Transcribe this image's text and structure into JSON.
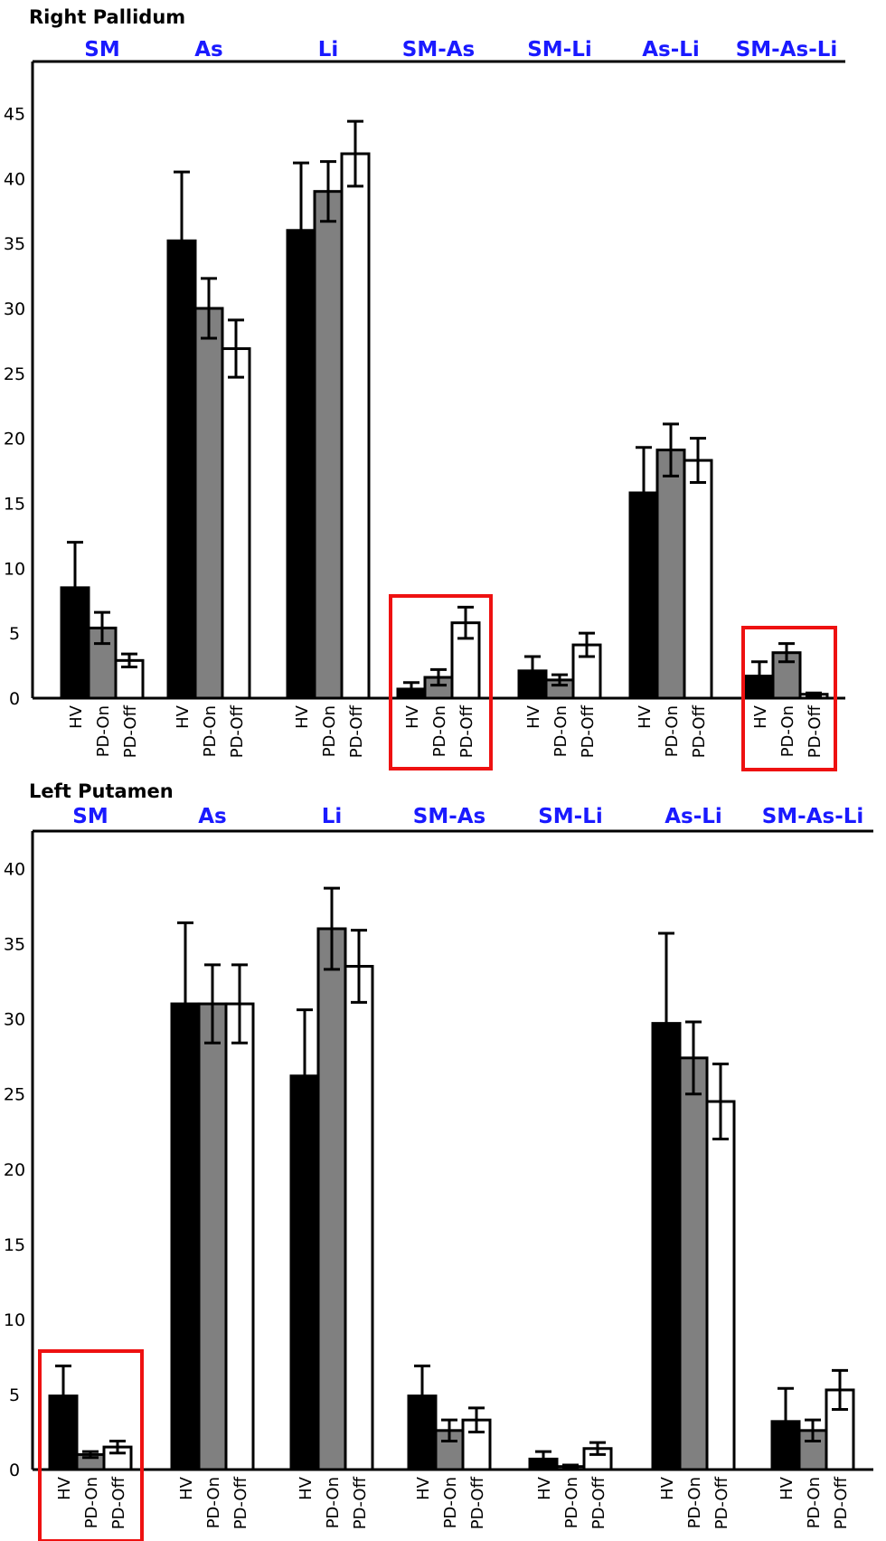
{
  "chart_data": [
    {
      "type": "bar",
      "title": "Right Pallidum",
      "categories": [
        "SM",
        "As",
        "Li",
        "SM-As",
        "SM-Li",
        "As-Li",
        "SM-As-Li"
      ],
      "groups": [
        "HV",
        "PD-On",
        "PD-Off"
      ],
      "colors": [
        "#000000",
        "#808080",
        "#ffffff"
      ],
      "ylim": [
        0,
        49
      ],
      "yticks": [
        0,
        5,
        10,
        15,
        20,
        25,
        30,
        35,
        40,
        45
      ],
      "series": [
        {
          "name": "HV",
          "values": [
            8.5,
            35.2,
            36.0,
            0.7,
            2.1,
            15.8,
            1.7
          ],
          "errors": [
            3.5,
            5.3,
            5.2,
            0.5,
            1.1,
            3.5,
            1.1
          ]
        },
        {
          "name": "PD-On",
          "values": [
            5.4,
            30.0,
            39.0,
            1.6,
            1.4,
            19.1,
            3.5
          ],
          "errors": [
            1.2,
            2.3,
            2.3,
            0.6,
            0.4,
            2.0,
            0.7
          ]
        },
        {
          "name": "PD-Off",
          "values": [
            2.9,
            26.9,
            41.9,
            5.8,
            4.1,
            18.3,
            0.3
          ],
          "errors": [
            0.5,
            2.2,
            2.5,
            1.2,
            0.9,
            1.7,
            0.1
          ]
        }
      ],
      "highlighted": [
        "SM-As",
        "SM-As-Li"
      ]
    },
    {
      "type": "bar",
      "title": "Left Putamen",
      "categories": [
        "SM",
        "As",
        "Li",
        "SM-As",
        "SM-Li",
        "As-Li",
        "SM-As-Li"
      ],
      "groups": [
        "HV",
        "PD-On",
        "PD-Off"
      ],
      "colors": [
        "#000000",
        "#808080",
        "#ffffff"
      ],
      "ylim": [
        0,
        42.5
      ],
      "yticks": [
        0,
        5,
        10,
        15,
        20,
        25,
        30,
        35,
        40
      ],
      "series": [
        {
          "name": "HV",
          "values": [
            4.9,
            31.0,
            26.2,
            4.9,
            0.7,
            29.7,
            3.2
          ],
          "errors": [
            2.0,
            5.4,
            4.4,
            2.0,
            0.5,
            6.0,
            2.2
          ]
        },
        {
          "name": "PD-On",
          "values": [
            1.0,
            31.0,
            36.0,
            2.6,
            0.2,
            27.4,
            2.6
          ],
          "errors": [
            0.2,
            2.6,
            2.7,
            0.7,
            0.1,
            2.4,
            0.7
          ]
        },
        {
          "name": "PD-Off",
          "values": [
            1.5,
            31.0,
            33.5,
            3.3,
            1.4,
            24.5,
            5.3
          ],
          "errors": [
            0.4,
            2.6,
            2.4,
            0.8,
            0.4,
            2.5,
            1.3
          ]
        }
      ],
      "highlighted": [
        "SM"
      ]
    }
  ]
}
